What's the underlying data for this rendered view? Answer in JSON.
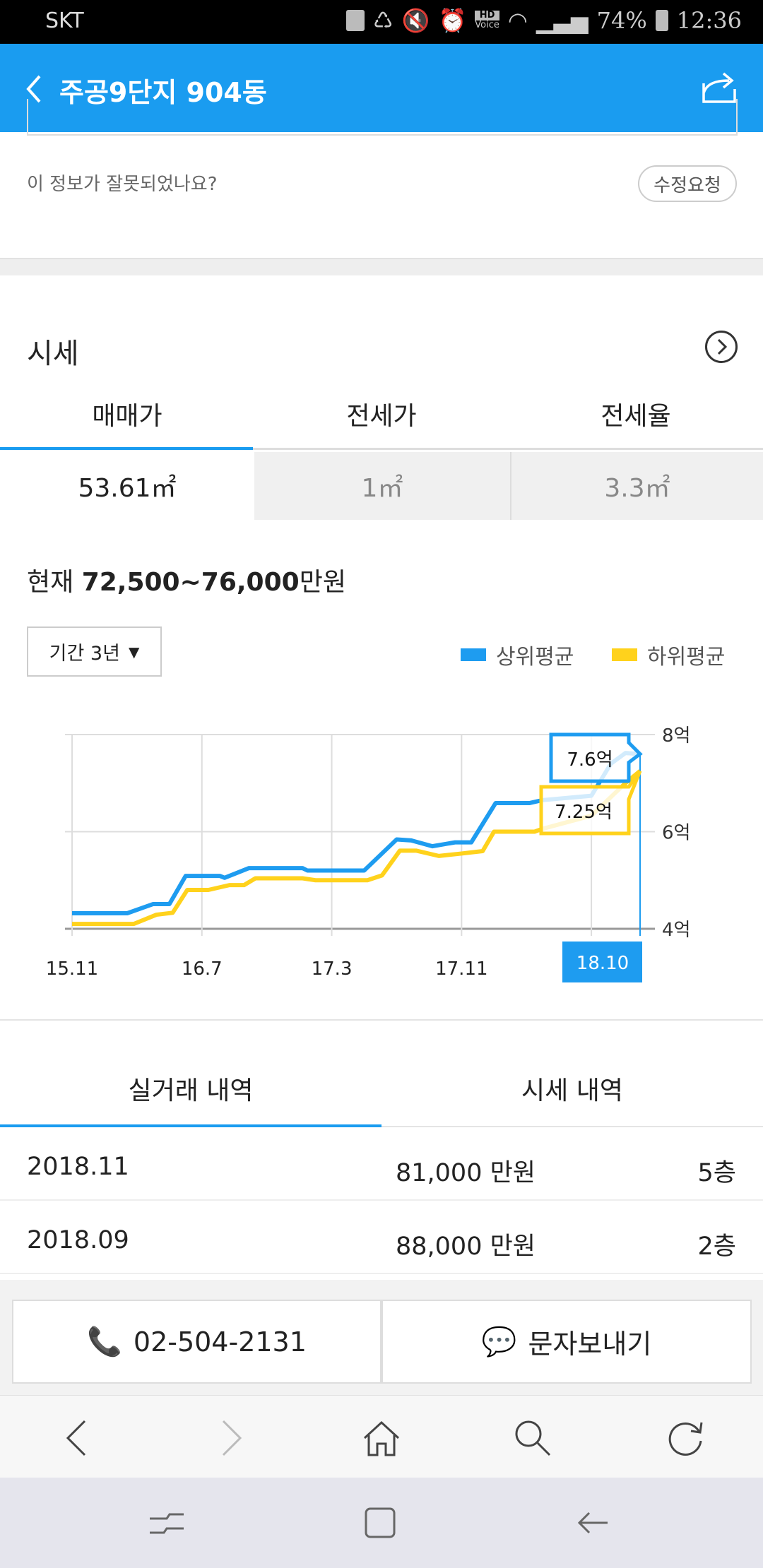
{
  "status_bar": {
    "carrier": "SKT",
    "battery": "74%",
    "time": "12:36",
    "hd_label": "HD",
    "voice_label": "Voice"
  },
  "header": {
    "title": "주공9단지 904동"
  },
  "info": {
    "wrong_text": "이 정보가 잘못되었나요?",
    "fix_button": "수정요청"
  },
  "price": {
    "section_title": "시세",
    "tabs": [
      {
        "label": "매매가"
      },
      {
        "label": "전세가"
      },
      {
        "label": "전세율"
      }
    ],
    "areas": [
      {
        "label": "53.61㎡"
      },
      {
        "label": "1㎡"
      },
      {
        "label": "3.3㎡"
      }
    ],
    "current_prefix": "현재 ",
    "current_range": "72,500~76,000",
    "current_unit": "만원",
    "period_label": "기간 3년",
    "legend": {
      "upper": "상위평균",
      "lower": "하위평균"
    }
  },
  "colors": {
    "accent": "#1a9cf0",
    "upper": "#1e9cf0",
    "lower": "#ffd21c"
  },
  "chart_data": {
    "type": "line",
    "x_unit": "months since 15.11",
    "xlim": [
      0,
      35
    ],
    "ylim": [
      4,
      8
    ],
    "yticks": [
      {
        "v": 8,
        "label": "8억"
      },
      {
        "v": 6,
        "label": "6억"
      },
      {
        "v": 4,
        "label": "4억"
      }
    ],
    "xticks": [
      {
        "v": 0,
        "label": "15.11"
      },
      {
        "v": 8,
        "label": "16.7"
      },
      {
        "v": 16,
        "label": "17.3"
      },
      {
        "v": 24,
        "label": "17.11"
      },
      {
        "v": 32,
        "label": ""
      }
    ],
    "selected": {
      "x": 35,
      "label": "18.10",
      "upper_label": "7.6억",
      "lower_label": "7.25억"
    },
    "series": [
      {
        "name": "상위평균",
        "points": [
          [
            0,
            4.32
          ],
          [
            3.4,
            4.32
          ],
          [
            5,
            4.51
          ],
          [
            6,
            4.51
          ],
          [
            7,
            5.09
          ],
          [
            9.1,
            5.09
          ],
          [
            9.4,
            5.05
          ],
          [
            10.9,
            5.25
          ],
          [
            14.2,
            5.25
          ],
          [
            14.5,
            5.2
          ],
          [
            18,
            5.2
          ],
          [
            20,
            5.84
          ],
          [
            20.9,
            5.82
          ],
          [
            22.2,
            5.7
          ],
          [
            23.6,
            5.78
          ],
          [
            24.6,
            5.78
          ],
          [
            26.1,
            6.59
          ],
          [
            28.2,
            6.59
          ],
          [
            29,
            6.65
          ],
          [
            32,
            6.74
          ],
          [
            33.2,
            7.4
          ],
          [
            34.1,
            7.62
          ],
          [
            35,
            7.6
          ]
        ]
      },
      {
        "name": "하위평균",
        "points": [
          [
            0,
            4.1
          ],
          [
            3.8,
            4.1
          ],
          [
            5.2,
            4.29
          ],
          [
            6.2,
            4.33
          ],
          [
            7.1,
            4.8
          ],
          [
            8.4,
            4.8
          ],
          [
            9.7,
            4.9
          ],
          [
            10.6,
            4.9
          ],
          [
            11.3,
            5.04
          ],
          [
            14.2,
            5.04
          ],
          [
            15,
            5.0
          ],
          [
            18.2,
            5.0
          ],
          [
            19.1,
            5.1
          ],
          [
            20.2,
            5.61
          ],
          [
            21.2,
            5.61
          ],
          [
            22.6,
            5.5
          ],
          [
            24,
            5.55
          ],
          [
            25.3,
            5.6
          ],
          [
            26,
            6.0
          ],
          [
            28.5,
            6.0
          ],
          [
            29,
            6.06
          ],
          [
            32,
            6.33
          ],
          [
            34.1,
            7.0
          ],
          [
            35,
            7.25
          ]
        ]
      }
    ]
  },
  "deals": {
    "tabs": [
      {
        "label": "실거래 내역"
      },
      {
        "label": "시세 내역"
      }
    ],
    "rows": [
      {
        "date": "2018.11",
        "price": "81,000 만원",
        "floor": "5층"
      },
      {
        "date": "2018.09",
        "price": "88,000 만원",
        "floor": "2층"
      }
    ]
  },
  "actions": {
    "phone": "02-504-2131",
    "sms": "문자보내기"
  }
}
